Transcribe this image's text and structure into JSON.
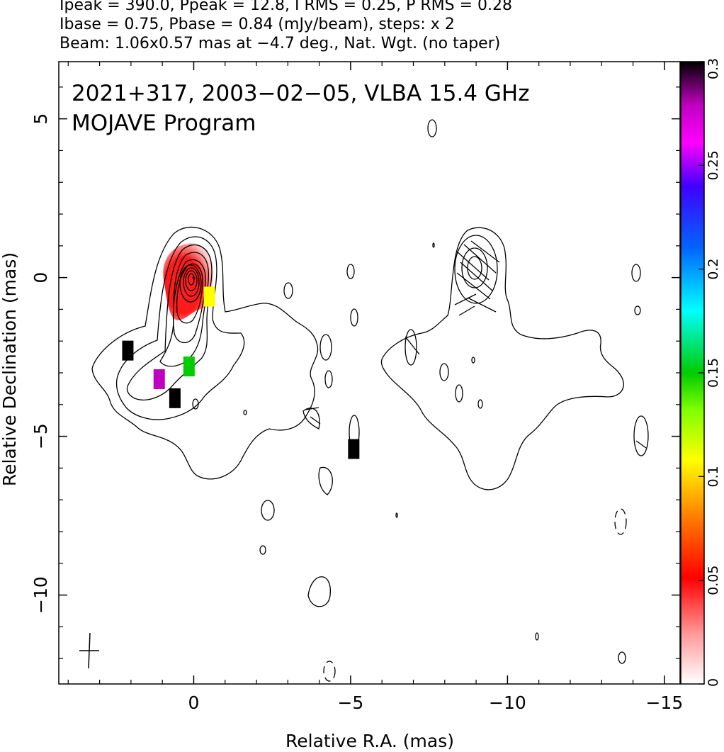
{
  "header": {
    "line1": "Ipeak = 390.0, Ppeak = 12.8, I RMS = 0.25, P RMS = 0.28",
    "line2": "Ibase = 0.75, Pbase = 0.84 (mJy/beam), steps: x 2",
    "line3": "Beam: 1.06x0.57 mas at −4.7 deg., Nat. Wgt. (no taper)"
  },
  "chart_data": {
    "type": "heatmap",
    "title_line1": "2021+317, 2003−02−05, VLBA 15.4 GHz",
    "title_line2": "MOJAVE Program",
    "xlabel": "Relative R.A. (mas)",
    "ylabel": "Relative Declination (mas)",
    "xlim": [
      4.3,
      -15.5
    ],
    "ylim": [
      -12.8,
      6.8
    ],
    "x_ticks": [
      0,
      -5,
      -10,
      -15
    ],
    "x_tick_labels": [
      "0",
      "−5",
      "−10",
      "−15"
    ],
    "y_ticks": [
      5,
      0,
      -5,
      -10
    ],
    "y_tick_labels": [
      "5",
      "0",
      "−5",
      "−10"
    ],
    "colorbar": {
      "range": [
        0,
        0.3
      ],
      "ticks": [
        0,
        0.05,
        0.1,
        0.15,
        0.2,
        0.25,
        0.3
      ],
      "tick_labels": [
        "0",
        "0.05",
        "0.1",
        "0.15",
        "0.2",
        "0.25",
        "0.3"
      ],
      "colors": [
        "#ffffff",
        "#ff9a9a",
        "#ff0000",
        "#ff8000",
        "#ffff00",
        "#80ff00",
        "#00cc00",
        "#00ffff",
        "#0066ff",
        "#4000ff",
        "#ff00ff",
        "#c000c0",
        "#000000"
      ]
    },
    "core": {
      "x": 0,
      "y": 0
    },
    "fractional_pol_pixels": [
      {
        "x": 2.1,
        "y": -2.3,
        "value": 0.3
      },
      {
        "x": 1.1,
        "y": -3.2,
        "value": 0.27
      },
      {
        "x": 0.6,
        "y": -3.8,
        "value": 0.3
      },
      {
        "x": -5.1,
        "y": -5.4,
        "value": 0.3
      },
      {
        "x": 0.15,
        "y": -2.8,
        "value": 0.14
      },
      {
        "x": -0.5,
        "y": -0.6,
        "value": 0.1
      }
    ],
    "beam": {
      "major_mas": 1.06,
      "minor_mas": 0.57,
      "pa_deg": -4.7
    },
    "grid": false,
    "legend": "none"
  }
}
